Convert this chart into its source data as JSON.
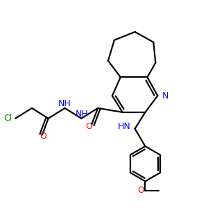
{
  "bg_color": "#ffffff",
  "bond_color": "#000000",
  "blue_color": "#0000ff",
  "red_color": "#ff0000",
  "green_color": "#008000",
  "line_width": 1.6,
  "figsize": [
    3.0,
    3.0
  ],
  "dpi": 100,
  "xlim": [
    0,
    10
  ],
  "ylim": [
    0,
    10
  ]
}
